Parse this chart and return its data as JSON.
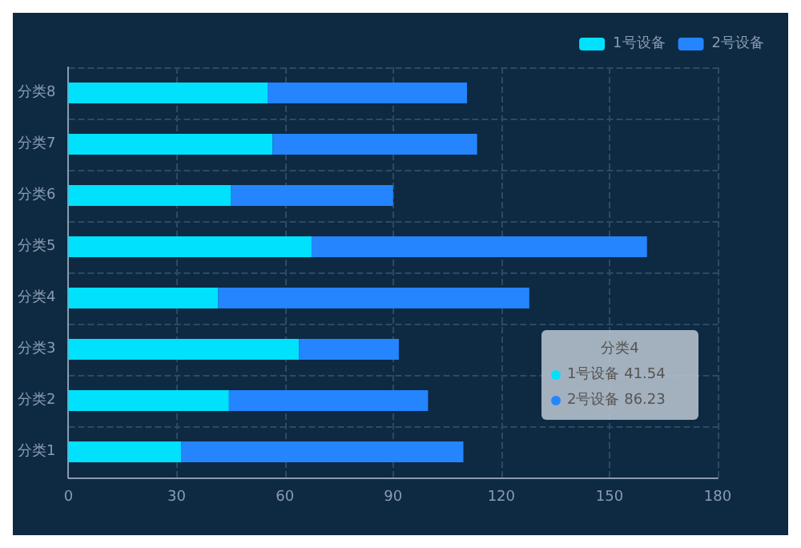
{
  "chart_data": {
    "type": "bar",
    "orientation": "horizontal",
    "stacked": true,
    "categories": [
      "分类8",
      "分类7",
      "分类6",
      "分类5",
      "分类4",
      "分类3",
      "分类2",
      "分类1"
    ],
    "series": [
      {
        "name": "1号设备",
        "color": "#00e1fd",
        "values": [
          55.2,
          56.6,
          45.1,
          67.4,
          41.54,
          63.9,
          44.5,
          31.3
        ]
      },
      {
        "name": "2号设备",
        "color": "#2485fe",
        "values": [
          55.3,
          56.7,
          44.9,
          93,
          86.23,
          27.7,
          55.2,
          78.2
        ]
      }
    ],
    "xlim": [
      0,
      180
    ],
    "xticks": [
      0,
      30,
      60,
      90,
      120,
      150,
      180
    ],
    "grid": true,
    "legend": "top right",
    "annotations": [
      "分类4",
      "1号设备 41.54",
      "2号设备 86.23"
    ]
  }
}
